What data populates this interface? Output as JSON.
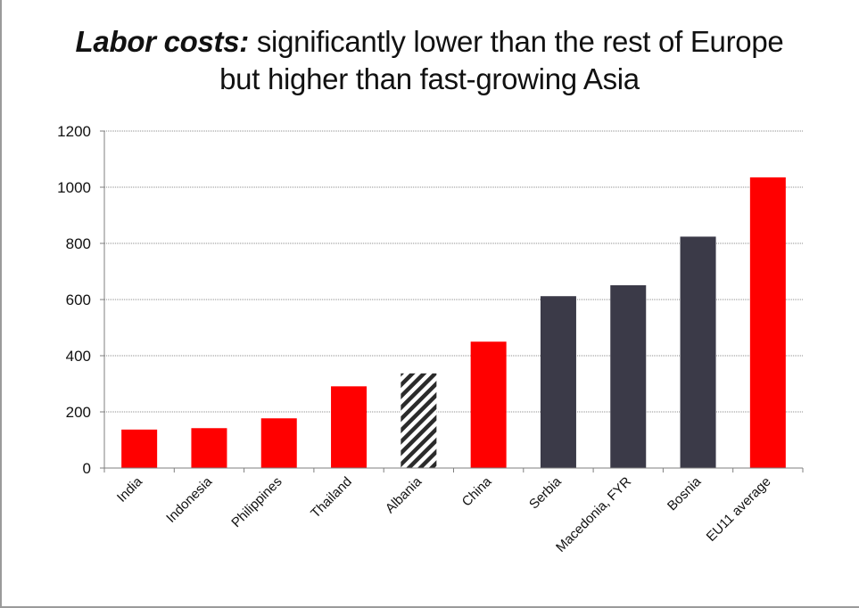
{
  "title": {
    "emphasis": "Labor costs:",
    "line1_rest": "significantly lower than the rest of Europe",
    "line2": "but higher than fast-growing Asia"
  },
  "colors": {
    "red": "#ff0000",
    "dark": "#3b3a48",
    "hatch_stroke": "#2b2b2b",
    "axis": "#7f7f7f",
    "grid": "#8c8c8c",
    "text": "#111111"
  },
  "chart_data": {
    "type": "bar",
    "categories": [
      "India",
      "Indonesia",
      "Philippines",
      "Thailand",
      "Albania",
      "China",
      "Serbia",
      "Macedonia, FYR",
      "Bosnia",
      "EU11 average"
    ],
    "values": [
      137,
      142,
      177,
      291,
      337,
      450,
      612,
      651,
      824,
      1035
    ],
    "bar_styles": [
      "red",
      "red",
      "red",
      "red",
      "hatched",
      "red",
      "dark",
      "dark",
      "dark",
      "red"
    ],
    "ylim": [
      0,
      1200
    ],
    "yticks": [
      "0",
      "200",
      "400",
      "600",
      "800",
      "1000",
      "1200"
    ],
    "xlabel": "",
    "ylabel": "",
    "grid": true,
    "legend": "none"
  }
}
